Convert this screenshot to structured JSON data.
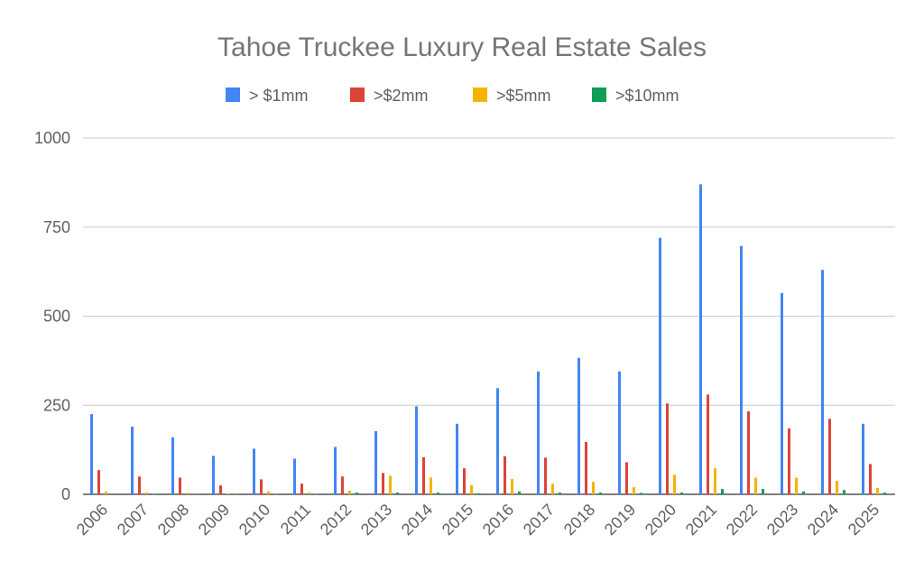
{
  "chart_data": {
    "type": "bar",
    "title": "Tahoe Truckee Luxury Real Estate Sales",
    "xlabel": "",
    "ylabel": "",
    "ylim": [
      0,
      1000
    ],
    "yticks": [
      "0",
      "250",
      "500",
      "750",
      "1000"
    ],
    "legend_position": "top",
    "grid": true,
    "categories": [
      "2006",
      "2007",
      "2008",
      "2009",
      "2010",
      "2011",
      "2012",
      "2013",
      "2014",
      "2015",
      "2016",
      "2017",
      "2018",
      "2019",
      "2020",
      "2021",
      "2022",
      "2023",
      "2024",
      "2025"
    ],
    "series": [
      {
        "name": "> $1mm",
        "color": "#4285F4",
        "values": [
          225,
          190,
          160,
          108,
          128,
          100,
          133,
          177,
          247,
          198,
          298,
          345,
          383,
          345,
          720,
          870,
          697,
          565,
          630,
          198
        ]
      },
      {
        "name": ">$2mm",
        "color": "#DB4437",
        "values": [
          68,
          50,
          47,
          25,
          42,
          30,
          50,
          60,
          104,
          73,
          107,
          103,
          147,
          90,
          255,
          280,
          233,
          185,
          212,
          85
        ]
      },
      {
        "name": ">$5mm",
        "color": "#F4B400",
        "values": [
          8,
          5,
          4,
          2,
          8,
          5,
          10,
          52,
          47,
          26,
          43,
          30,
          35,
          20,
          55,
          73,
          47,
          47,
          38,
          18
        ]
      },
      {
        "name": ">$10mm",
        "color": "#0F9D58",
        "values": [
          2,
          1,
          1,
          1,
          1,
          1,
          5,
          5,
          5,
          3,
          8,
          5,
          5,
          4,
          5,
          15,
          15,
          8,
          12,
          5
        ]
      }
    ]
  }
}
